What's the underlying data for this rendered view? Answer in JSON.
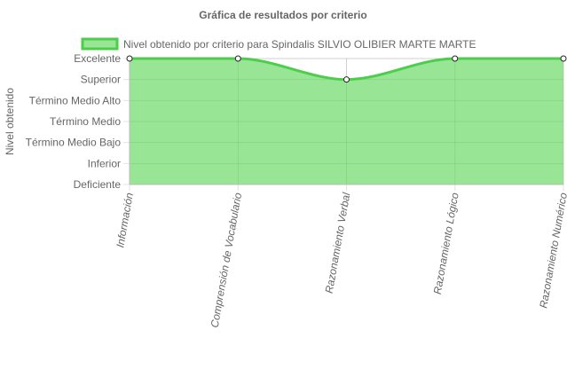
{
  "chart_data": {
    "type": "area",
    "title": "Gráfica de resultados por criterio",
    "ylabel": "Nivel obtenido",
    "xlabel": "",
    "categories": [
      "Información",
      "Comprensión de Vocabulario",
      "Razonamiento Verbal",
      "Razonamiento Lógico",
      "Razonamiento Numérico"
    ],
    "y_levels": [
      "Deficiente",
      "Inferior",
      "Término Medio Bajo",
      "Término Medio",
      "Término Medio Alto",
      "Superior",
      "Excelente"
    ],
    "ylim": [
      0,
      6
    ],
    "series": [
      {
        "name": "Nivel obtenido por criterio para Spindalis SILVIO OLIBIER MARTE MARTE",
        "values": [
          6,
          6,
          5,
          6,
          6
        ],
        "value_labels": [
          "Excelente",
          "Excelente",
          "Superior",
          "Excelente",
          "Excelente"
        ],
        "fill_color": "#98e695",
        "line_color": "#4dce4a"
      }
    ],
    "legend_position": "top",
    "grid": true,
    "x_tick_rotation": "vertical"
  }
}
